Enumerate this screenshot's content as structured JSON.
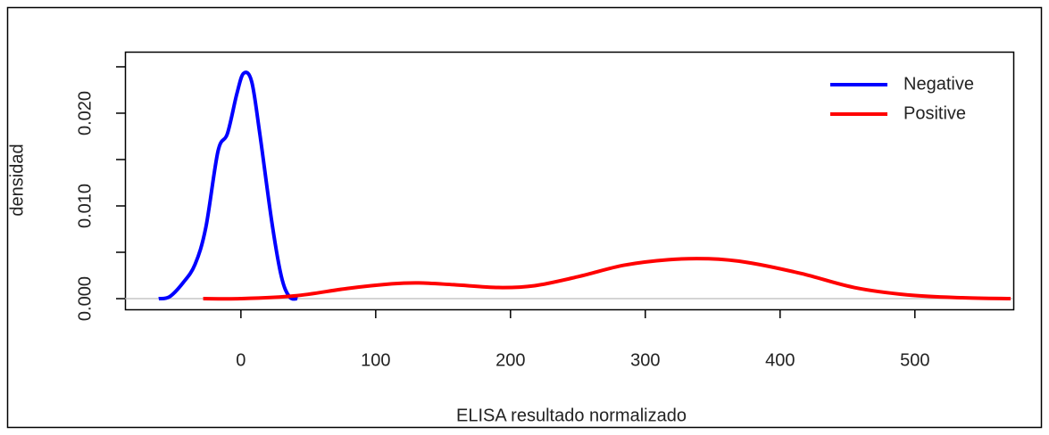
{
  "chart_data": {
    "type": "line",
    "xlabel": "ELISA resultado normalizado",
    "ylabel": "densidad",
    "xlim": [
      -86,
      573
    ],
    "ylim": [
      -0.00115,
      0.02663
    ],
    "xticks": [
      0,
      100,
      200,
      300,
      400,
      500
    ],
    "yticks": [
      {
        "value": 0,
        "label": "0.000"
      },
      {
        "value": 0.01,
        "label": "0.010"
      },
      {
        "value": 0.02,
        "label": "0.020"
      }
    ],
    "yticks_minor": [
      0.005,
      0.015,
      0.025
    ],
    "zero_line": true,
    "legend": "topright",
    "series": [
      {
        "name": "Negative",
        "color": "#0000ff",
        "x": [
          -61,
          -53,
          -43,
          -34,
          -26,
          -17,
          -10,
          -3,
          2,
          8,
          14,
          23,
          30,
          36,
          42
        ],
        "values": [
          0,
          0.0002,
          0.0017,
          0.0037,
          0.0077,
          0.0159,
          0.0178,
          0.0221,
          0.0243,
          0.0234,
          0.0178,
          0.0082,
          0.0024,
          0.0002,
          0
        ]
      },
      {
        "name": "Positive",
        "color": "#ff0000",
        "x": [
          -28,
          0,
          40,
          79,
          112,
          132,
          158,
          191,
          218,
          251,
          284,
          317,
          347,
          376,
          416,
          455,
          495,
          535,
          571
        ],
        "values": [
          0,
          0,
          0.0003,
          0.0011,
          0.0016,
          0.0017,
          0.0015,
          0.0012,
          0.0014,
          0.0024,
          0.0036,
          0.0042,
          0.0043,
          0.0039,
          0.0027,
          0.0012,
          0.0004,
          0.0001,
          0
        ]
      }
    ]
  }
}
